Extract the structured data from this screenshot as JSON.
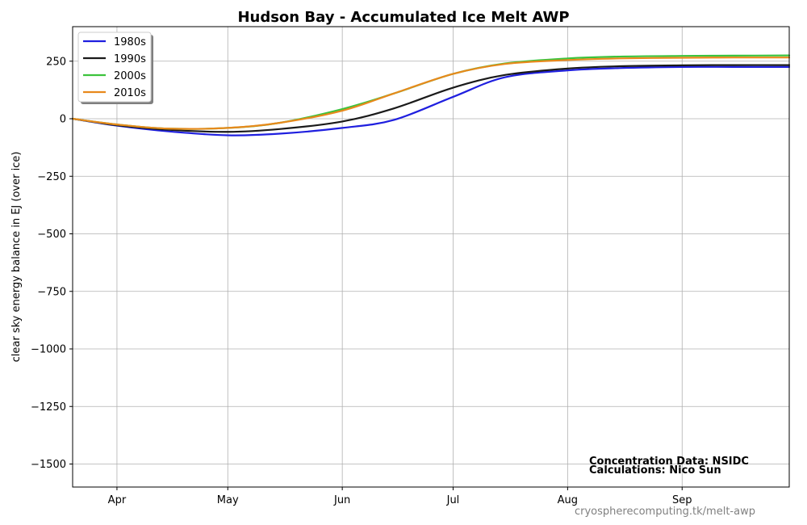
{
  "chart_data": {
    "type": "line",
    "title": "Hudson Bay - Accumulated Ice Melt AWP",
    "xlabel": "",
    "ylabel": "clear sky energy balance in  EJ (over ice)",
    "x_unit": "date",
    "xlim": [
      "03-20",
      "09-30"
    ],
    "ylim": [
      -1600,
      400
    ],
    "xticks": [
      {
        "label": "Apr",
        "date": "04-01"
      },
      {
        "label": "May",
        "date": "05-01"
      },
      {
        "label": "Jun",
        "date": "06-01"
      },
      {
        "label": "Jul",
        "date": "07-01"
      },
      {
        "label": "Aug",
        "date": "08-01"
      },
      {
        "label": "Sep",
        "date": "09-01"
      }
    ],
    "yticks": [
      {
        "label": "250",
        "value": 250
      },
      {
        "label": "0",
        "value": 0
      },
      {
        "label": "−250",
        "value": -250
      },
      {
        "label": "−500",
        "value": -500
      },
      {
        "label": "−750",
        "value": -750
      },
      {
        "label": "−1000",
        "value": -1000
      },
      {
        "label": "−1250",
        "value": -1250
      },
      {
        "label": "−1500",
        "value": -1500
      }
    ],
    "grid": true,
    "legend_position": "top-left",
    "x": [
      "03-20",
      "04-01",
      "04-15",
      "05-01",
      "05-15",
      "06-01",
      "06-15",
      "07-01",
      "07-15",
      "08-01",
      "08-15",
      "09-01",
      "09-15",
      "09-30"
    ],
    "series": [
      {
        "name": "1980s",
        "color": "#1f1fdf",
        "values": [
          0,
          -30,
          -55,
          -72,
          -65,
          -40,
          -5,
          95,
          180,
          210,
          220,
          225,
          225,
          225
        ]
      },
      {
        "name": "1990s",
        "color": "#1a1a1a",
        "values": [
          0,
          -28,
          -48,
          -57,
          -45,
          -12,
          45,
          135,
          190,
          218,
          228,
          232,
          233,
          233
        ]
      },
      {
        "name": "2000s",
        "color": "#3cc33c",
        "values": [
          0,
          -25,
          -43,
          -40,
          -18,
          42,
          110,
          195,
          240,
          262,
          270,
          273,
          274,
          275
        ]
      },
      {
        "name": "2010s",
        "color": "#e8891c",
        "values": [
          0,
          -25,
          -43,
          -40,
          -18,
          35,
          110,
          195,
          238,
          255,
          262,
          265,
          266,
          266
        ]
      }
    ],
    "annotations": [
      "Concentration Data: NSIDC",
      "Calculations: Nico Sun"
    ]
  },
  "footer": "cryospherecomputing.tk/melt-awp"
}
